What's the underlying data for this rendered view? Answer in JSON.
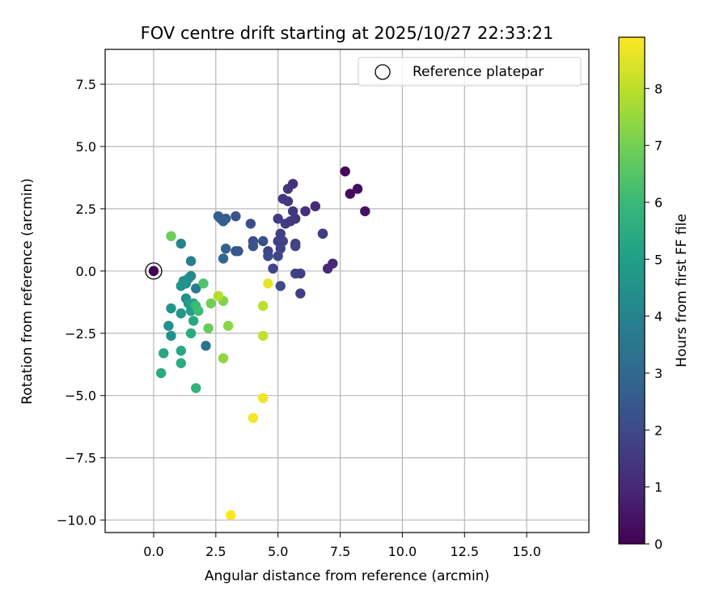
{
  "chart_data": {
    "type": "scatter",
    "title": "FOV centre drift starting at 2025/10/27 22:33:21",
    "xlabel": "Angular distance from reference (arcmin)",
    "ylabel": "Rotation from reference (arcmin)",
    "xlim": [
      -1.95,
      17.5
    ],
    "ylim": [
      -10.5,
      8.9
    ],
    "xticks": [
      0.0,
      2.5,
      5.0,
      7.5,
      10.0,
      12.5,
      15.0
    ],
    "xtick_labels": [
      "0.0",
      "2.5",
      "5.0",
      "7.5",
      "10.0",
      "12.5",
      "15.0"
    ],
    "yticks": [
      7.5,
      5.0,
      2.5,
      0.0,
      -2.5,
      -5.0,
      -7.5,
      -10.0
    ],
    "ytick_labels": [
      "7.5",
      "5.0",
      "2.5",
      "0.0",
      "−2.5",
      "−5.0",
      "−7.5",
      "−10.0"
    ],
    "grid": true,
    "legend": {
      "label": "Reference platepar",
      "position": "top-right"
    },
    "reference_point": {
      "x": 0.0,
      "y": 0.0
    },
    "colorbar": {
      "label": "Hours from first FF file",
      "min": 0,
      "max": 8.9,
      "ticks": [
        0,
        1,
        2,
        3,
        4,
        5,
        6,
        7,
        8
      ],
      "tick_labels": [
        "0",
        "1",
        "2",
        "3",
        "4",
        "5",
        "6",
        "7",
        "8"
      ],
      "colormap": "viridis",
      "stops": [
        "#440154",
        "#482878",
        "#3e4989",
        "#31688e",
        "#26828e",
        "#1f9e89",
        "#35b779",
        "#6ece58",
        "#b5de2b",
        "#fde725"
      ]
    },
    "points": [
      {
        "x": 0.0,
        "y": 0.0,
        "h": 0.0
      },
      {
        "x": 7.7,
        "y": 4.0,
        "h": 0.2
      },
      {
        "x": 7.9,
        "y": 3.1,
        "h": 0.3
      },
      {
        "x": 8.2,
        "y": 3.3,
        "h": 0.3
      },
      {
        "x": 8.5,
        "y": 2.4,
        "h": 0.4
      },
      {
        "x": 6.8,
        "y": 1.5,
        "h": 0.8
      },
      {
        "x": 7.0,
        "y": 0.1,
        "h": 1.0
      },
      {
        "x": 7.2,
        "y": 0.3,
        "h": 1.0
      },
      {
        "x": 6.5,
        "y": 2.6,
        "h": 1.1
      },
      {
        "x": 6.1,
        "y": 2.4,
        "h": 1.2
      },
      {
        "x": 5.6,
        "y": 3.5,
        "h": 1.3
      },
      {
        "x": 5.4,
        "y": 3.3,
        "h": 1.4
      },
      {
        "x": 5.2,
        "y": 2.9,
        "h": 1.5
      },
      {
        "x": 5.4,
        "y": 2.8,
        "h": 1.5
      },
      {
        "x": 5.7,
        "y": 2.1,
        "h": 1.4
      },
      {
        "x": 5.6,
        "y": 2.4,
        "h": 1.5
      },
      {
        "x": 5.0,
        "y": 2.1,
        "h": 1.6
      },
      {
        "x": 5.3,
        "y": 1.9,
        "h": 1.6
      },
      {
        "x": 5.5,
        "y": 2.0,
        "h": 1.5
      },
      {
        "x": 5.1,
        "y": 1.5,
        "h": 1.7
      },
      {
        "x": 5.0,
        "y": 1.2,
        "h": 1.7
      },
      {
        "x": 5.2,
        "y": 1.2,
        "h": 1.8
      },
      {
        "x": 5.7,
        "y": 1.1,
        "h": 1.7
      },
      {
        "x": 5.7,
        "y": 1.0,
        "h": 1.8
      },
      {
        "x": 5.1,
        "y": 0.9,
        "h": 1.8
      },
      {
        "x": 5.0,
        "y": 0.6,
        "h": 1.9
      },
      {
        "x": 4.6,
        "y": 0.8,
        "h": 1.9
      },
      {
        "x": 4.6,
        "y": 0.6,
        "h": 2.0
      },
      {
        "x": 4.8,
        "y": 0.1,
        "h": 1.9
      },
      {
        "x": 5.7,
        "y": -0.1,
        "h": 1.8
      },
      {
        "x": 5.9,
        "y": -0.1,
        "h": 1.7
      },
      {
        "x": 5.9,
        "y": -0.9,
        "h": 1.6
      },
      {
        "x": 5.1,
        "y": -0.6,
        "h": 2.0
      },
      {
        "x": 6.8,
        "y": 1.5,
        "h": 1.6
      },
      {
        "x": 4.4,
        "y": 1.2,
        "h": 2.2
      },
      {
        "x": 4.0,
        "y": 1.2,
        "h": 2.2
      },
      {
        "x": 4.0,
        "y": 1.0,
        "h": 2.3
      },
      {
        "x": 3.9,
        "y": 1.9,
        "h": 2.2
      },
      {
        "x": 3.4,
        "y": 0.8,
        "h": 2.3
      },
      {
        "x": 3.3,
        "y": 0.8,
        "h": 2.4
      },
      {
        "x": 3.3,
        "y": 2.2,
        "h": 2.4
      },
      {
        "x": 2.9,
        "y": 2.1,
        "h": 2.5
      },
      {
        "x": 2.8,
        "y": 2.0,
        "h": 2.6
      },
      {
        "x": 2.7,
        "y": 2.1,
        "h": 2.6
      },
      {
        "x": 2.6,
        "y": 2.2,
        "h": 2.7
      },
      {
        "x": 2.9,
        "y": 0.9,
        "h": 2.8
      },
      {
        "x": 2.8,
        "y": 0.5,
        "h": 3.0
      },
      {
        "x": 2.1,
        "y": -3.0,
        "h": 3.4
      },
      {
        "x": 1.7,
        "y": -0.7,
        "h": 3.6
      },
      {
        "x": 1.5,
        "y": 0.4,
        "h": 3.8
      },
      {
        "x": 1.1,
        "y": 1.1,
        "h": 4.0
      },
      {
        "x": 1.5,
        "y": -0.2,
        "h": 4.2
      },
      {
        "x": 1.4,
        "y": -0.3,
        "h": 4.3
      },
      {
        "x": 1.3,
        "y": -0.5,
        "h": 4.4
      },
      {
        "x": 1.2,
        "y": -0.4,
        "h": 4.5
      },
      {
        "x": 1.1,
        "y": -0.6,
        "h": 4.6
      },
      {
        "x": 0.6,
        "y": -2.2,
        "h": 4.4
      },
      {
        "x": 0.7,
        "y": -2.6,
        "h": 4.5
      },
      {
        "x": 0.7,
        "y": -1.5,
        "h": 4.6
      },
      {
        "x": 1.1,
        "y": -1.7,
        "h": 4.7
      },
      {
        "x": 1.3,
        "y": -1.1,
        "h": 4.5
      },
      {
        "x": 1.4,
        "y": -1.3,
        "h": 4.8
      },
      {
        "x": 1.5,
        "y": -1.6,
        "h": 5.0
      },
      {
        "x": 1.6,
        "y": -1.3,
        "h": 5.2
      },
      {
        "x": 1.6,
        "y": -2.0,
        "h": 5.3
      },
      {
        "x": 1.5,
        "y": -2.5,
        "h": 5.4
      },
      {
        "x": 1.1,
        "y": -3.2,
        "h": 5.3
      },
      {
        "x": 1.1,
        "y": -3.7,
        "h": 5.5
      },
      {
        "x": 0.4,
        "y": -3.3,
        "h": 5.3
      },
      {
        "x": 0.3,
        "y": -4.1,
        "h": 5.4
      },
      {
        "x": 1.7,
        "y": -4.7,
        "h": 5.8
      },
      {
        "x": 1.7,
        "y": -1.4,
        "h": 6.0
      },
      {
        "x": 1.8,
        "y": -1.6,
        "h": 6.1
      },
      {
        "x": 2.0,
        "y": -0.5,
        "h": 6.4
      },
      {
        "x": 0.7,
        "y": 1.4,
        "h": 6.9
      },
      {
        "x": 2.2,
        "y": -2.3,
        "h": 6.8
      },
      {
        "x": 2.3,
        "y": -1.3,
        "h": 7.0
      },
      {
        "x": 2.8,
        "y": -1.2,
        "h": 7.2
      },
      {
        "x": 3.0,
        "y": -2.2,
        "h": 7.3
      },
      {
        "x": 2.8,
        "y": -3.5,
        "h": 7.4
      },
      {
        "x": 2.6,
        "y": -1.0,
        "h": 7.9
      },
      {
        "x": 4.4,
        "y": -1.4,
        "h": 8.0
      },
      {
        "x": 4.4,
        "y": -2.6,
        "h": 8.1
      },
      {
        "x": 4.6,
        "y": -0.5,
        "h": 8.6
      },
      {
        "x": 4.4,
        "y": -5.1,
        "h": 8.7
      },
      {
        "x": 4.0,
        "y": -5.9,
        "h": 8.8
      },
      {
        "x": 3.1,
        "y": -9.8,
        "h": 8.9
      }
    ]
  }
}
